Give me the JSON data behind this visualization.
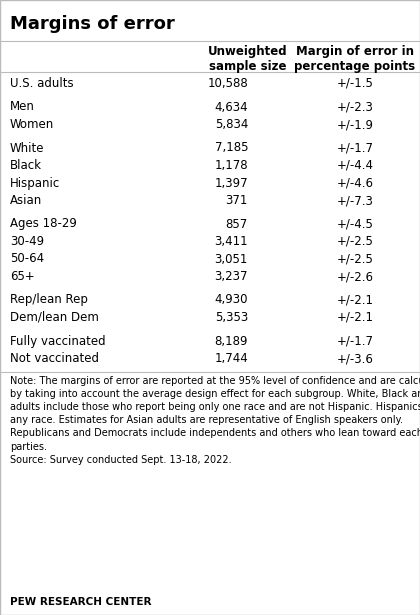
{
  "title": "Margins of error",
  "col1_header": "Unweighted\nsample size",
  "col2_header": "Margin of error in\npercentage points",
  "rows": [
    {
      "label": "U.S. adults",
      "sample": "10,588",
      "moe": "+/-1.5",
      "spacer": false
    },
    {
      "label": "",
      "sample": "",
      "moe": "",
      "spacer": true
    },
    {
      "label": "Men",
      "sample": "4,634",
      "moe": "+/-2.3",
      "spacer": false
    },
    {
      "label": "Women",
      "sample": "5,834",
      "moe": "+/-1.9",
      "spacer": false
    },
    {
      "label": "",
      "sample": "",
      "moe": "",
      "spacer": true
    },
    {
      "label": "White",
      "sample": "7,185",
      "moe": "+/-1.7",
      "spacer": false
    },
    {
      "label": "Black",
      "sample": "1,178",
      "moe": "+/-4.4",
      "spacer": false
    },
    {
      "label": "Hispanic",
      "sample": "1,397",
      "moe": "+/-4.6",
      "spacer": false
    },
    {
      "label": "Asian",
      "sample": "371",
      "moe": "+/-7.3",
      "spacer": false
    },
    {
      "label": "",
      "sample": "",
      "moe": "",
      "spacer": true
    },
    {
      "label": "Ages 18-29",
      "sample": "857",
      "moe": "+/-4.5",
      "spacer": false
    },
    {
      "label": "30-49",
      "sample": "3,411",
      "moe": "+/-2.5",
      "spacer": false
    },
    {
      "label": "50-64",
      "sample": "3,051",
      "moe": "+/-2.5",
      "spacer": false
    },
    {
      "label": "65+",
      "sample": "3,237",
      "moe": "+/-2.6",
      "spacer": false
    },
    {
      "label": "",
      "sample": "",
      "moe": "",
      "spacer": true
    },
    {
      "label": "Rep/lean Rep",
      "sample": "4,930",
      "moe": "+/-2.1",
      "spacer": false
    },
    {
      "label": "Dem/lean Dem",
      "sample": "5,353",
      "moe": "+/-2.1",
      "spacer": false
    },
    {
      "label": "",
      "sample": "",
      "moe": "",
      "spacer": true
    },
    {
      "label": "Fully vaccinated",
      "sample": "8,189",
      "moe": "+/-1.7",
      "spacer": false
    },
    {
      "label": "Not vaccinated",
      "sample": "1,744",
      "moe": "+/-3.6",
      "spacer": false
    }
  ],
  "note_text": "Note: The margins of error are reported at the 95% level of confidence and are calculated\nby taking into account the average design effect for each subgroup. White, Black and Asian\nadults include those who report being only one race and are not Hispanic. Hispanics are of\nany race. Estimates for Asian adults are representative of English speakers only.\nRepublicans and Democrats include independents and others who lean toward each of the\nparties.\nSource: Survey conducted Sept. 13-18, 2022.",
  "footer": "PEW RESEARCH CENTER",
  "bg_color": "#ffffff",
  "text_color": "#000000",
  "line_color": "#bbbbbb",
  "title_fontsize": 13,
  "header_fontsize": 8.5,
  "data_fontsize": 8.5,
  "note_fontsize": 7.0,
  "footer_fontsize": 7.5
}
